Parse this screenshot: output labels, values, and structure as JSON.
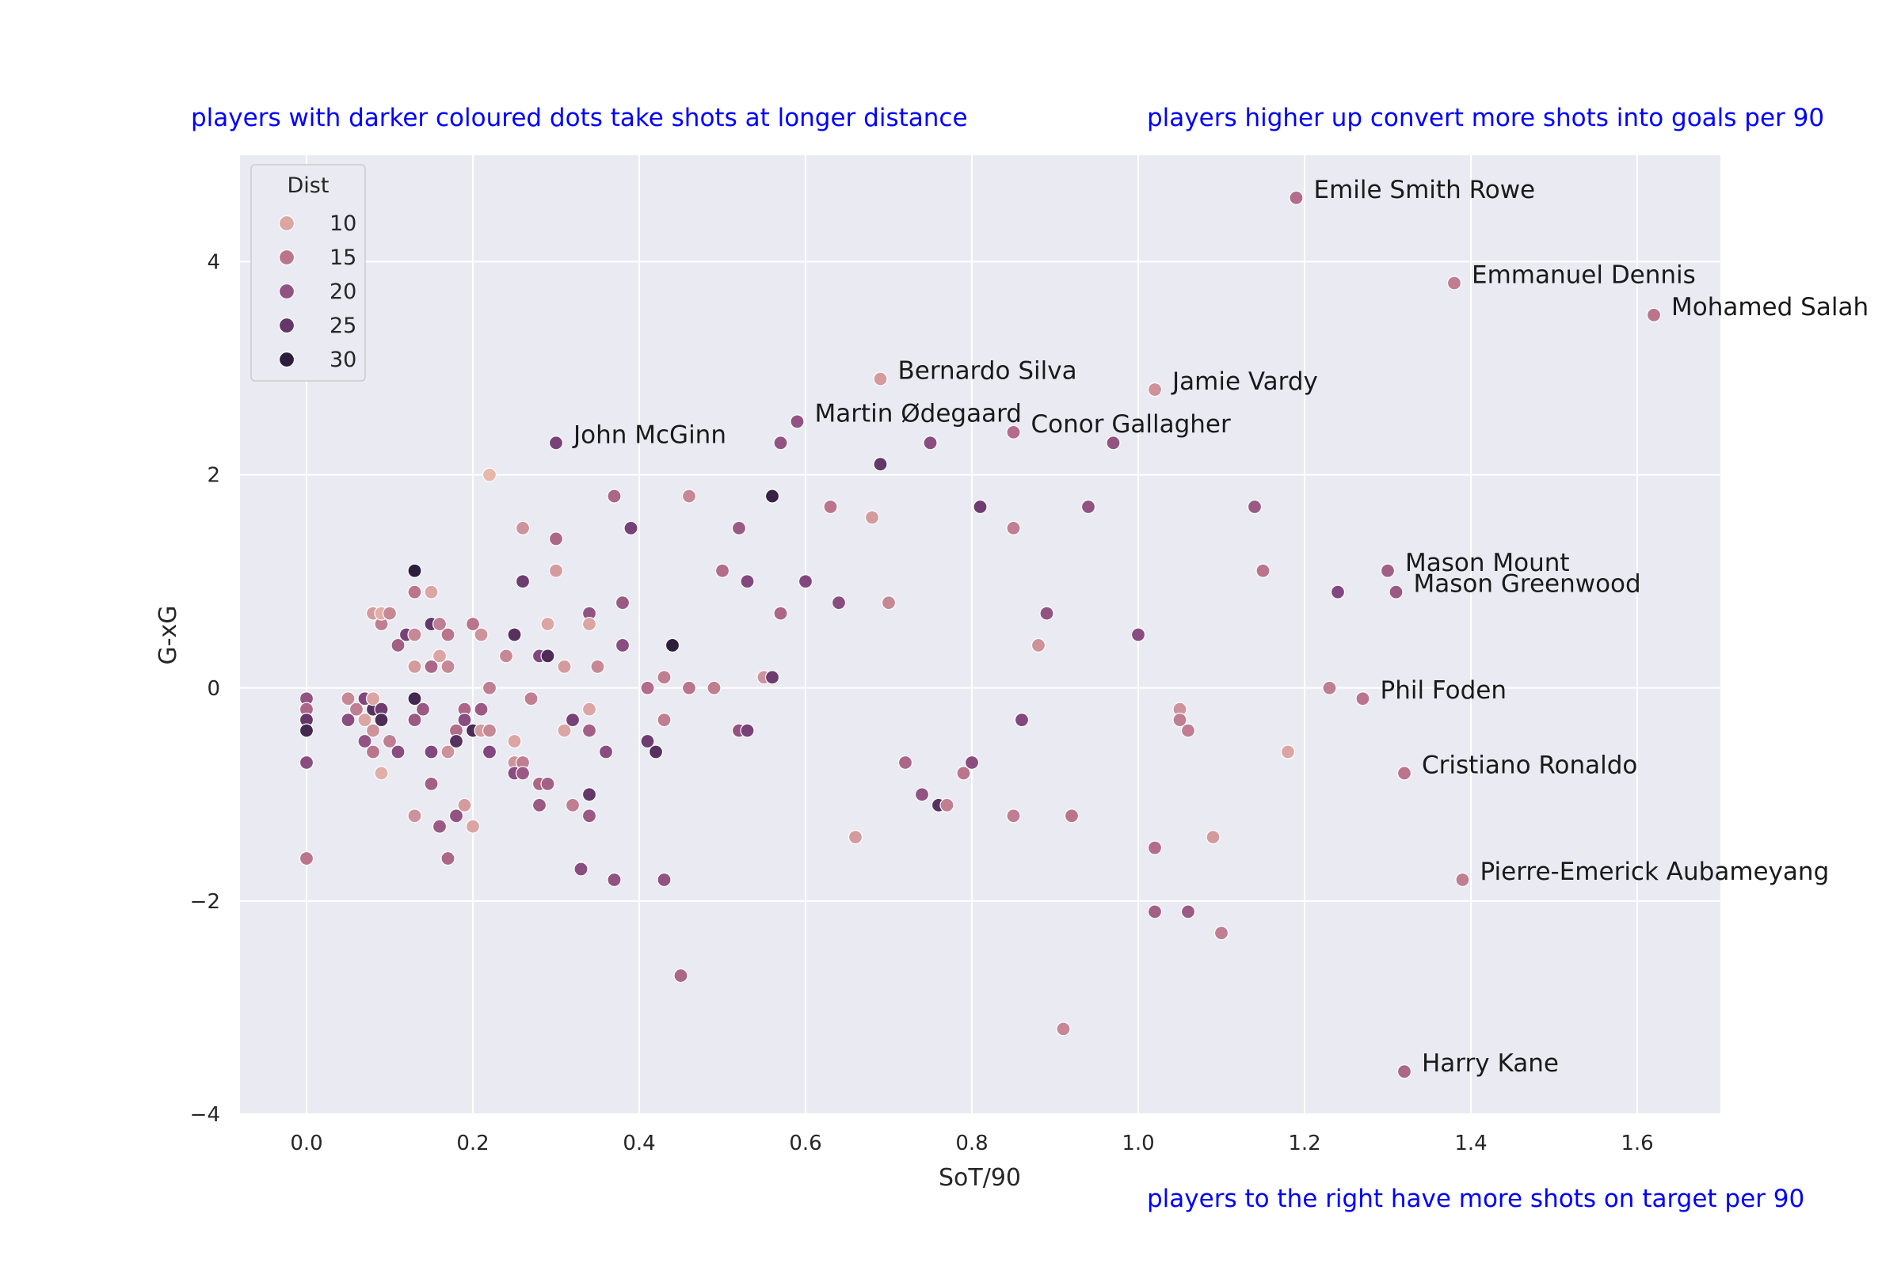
{
  "annotations": {
    "top_left": "players with darker coloured dots take shots at longer distance",
    "top_right": "players higher up convert more shots into goals per 90",
    "bottom_right": "players to the right have more shots on target per 90"
  },
  "chart_data": {
    "type": "scatter",
    "xlabel": "SoT/90",
    "ylabel": "G-xG",
    "xlim": [
      -0.08,
      1.7
    ],
    "ylim": [
      -4,
      5
    ],
    "xticks": [
      0.0,
      0.2,
      0.4,
      0.6,
      0.8,
      1.0,
      1.2,
      1.4,
      1.6
    ],
    "xtick_labels": [
      "0.0",
      "0.2",
      "0.4",
      "0.6",
      "0.8",
      "1.0",
      "1.2",
      "1.4",
      "1.6"
    ],
    "yticks": [
      -4,
      -2,
      0,
      2,
      4
    ],
    "ytick_labels": [
      "−4",
      "−2",
      "0",
      "2",
      "4"
    ],
    "grid": true,
    "hue_variable": "Dist",
    "colors": {
      "background": "#eaeaf2",
      "grid": "#ffffff",
      "annotation": "#0000ff",
      "hue_low": "#e8b8ad",
      "hue_high": "#2d1e3e"
    },
    "legend": {
      "title": "Dist",
      "placement": "upper-left",
      "entries": [
        {
          "label": "10",
          "value": 10
        },
        {
          "label": "15",
          "value": 15
        },
        {
          "label": "20",
          "value": 20
        },
        {
          "label": "25",
          "value": 25
        },
        {
          "label": "30",
          "value": 30
        }
      ]
    },
    "labeled_points": [
      {
        "name": "Emile Smith Rowe",
        "x": 1.19,
        "y": 4.6,
        "dist": 16
      },
      {
        "name": "Emmanuel Dennis",
        "x": 1.38,
        "y": 3.8,
        "dist": 14
      },
      {
        "name": "Mohamed Salah",
        "x": 1.62,
        "y": 3.5,
        "dist": 15
      },
      {
        "name": "Bernardo Silva",
        "x": 0.69,
        "y": 2.9,
        "dist": 11
      },
      {
        "name": "Jamie Vardy",
        "x": 1.02,
        "y": 2.8,
        "dist": 12
      },
      {
        "name": "Martin Ødegaard",
        "x": 0.59,
        "y": 2.5,
        "dist": 20
      },
      {
        "name": "Conor Gallagher",
        "x": 0.85,
        "y": 2.4,
        "dist": 16
      },
      {
        "name": "John McGinn",
        "x": 0.3,
        "y": 2.3,
        "dist": 23
      },
      {
        "name": "Mason Mount",
        "x": 1.3,
        "y": 1.1,
        "dist": 18
      },
      {
        "name": "Mason Greenwood",
        "x": 1.31,
        "y": 0.9,
        "dist": 19
      },
      {
        "name": "Phil Foden",
        "x": 1.27,
        "y": -0.1,
        "dist": 15
      },
      {
        "name": "Cristiano Ronaldo",
        "x": 1.32,
        "y": -0.8,
        "dist": 15
      },
      {
        "name": "Pierre-Emerick Aubameyang",
        "x": 1.39,
        "y": -1.8,
        "dist": 14
      },
      {
        "name": "Harry Kane",
        "x": 1.32,
        "y": -3.6,
        "dist": 17
      }
    ],
    "points": [
      [
        0.0,
        -0.1,
        20
      ],
      [
        0.0,
        -0.2,
        17
      ],
      [
        0.0,
        -0.3,
        25
      ],
      [
        0.0,
        -0.4,
        28
      ],
      [
        0.0,
        -0.7,
        21
      ],
      [
        0.0,
        -1.6,
        15
      ],
      [
        0.05,
        -0.1,
        13
      ],
      [
        0.05,
        -0.3,
        21
      ],
      [
        0.06,
        -0.2,
        14
      ],
      [
        0.07,
        -0.3,
        10
      ],
      [
        0.07,
        -0.1,
        22
      ],
      [
        0.07,
        -0.5,
        20
      ],
      [
        0.08,
        -0.2,
        26
      ],
      [
        0.08,
        -0.4,
        12
      ],
      [
        0.08,
        -0.6,
        15
      ],
      [
        0.08,
        0.7,
        11
      ],
      [
        0.08,
        -0.1,
        10
      ],
      [
        0.09,
        0.6,
        14
      ],
      [
        0.09,
        0.7,
        9
      ],
      [
        0.09,
        -0.2,
        24
      ],
      [
        0.09,
        -0.3,
        27
      ],
      [
        0.09,
        -0.8,
        9
      ],
      [
        0.1,
        0.7,
        13
      ],
      [
        0.1,
        -0.5,
        14
      ],
      [
        0.11,
        -0.6,
        21
      ],
      [
        0.11,
        0.4,
        18
      ],
      [
        0.12,
        0.5,
        23
      ],
      [
        0.13,
        0.9,
        15
      ],
      [
        0.13,
        0.5,
        13
      ],
      [
        0.13,
        0.2,
        11
      ],
      [
        0.13,
        1.1,
        30
      ],
      [
        0.13,
        -0.1,
        28
      ],
      [
        0.13,
        -0.3,
        19
      ],
      [
        0.13,
        -1.2,
        12
      ],
      [
        0.14,
        -0.2,
        19
      ],
      [
        0.15,
        0.9,
        10
      ],
      [
        0.15,
        0.6,
        25
      ],
      [
        0.15,
        0.2,
        17
      ],
      [
        0.15,
        -0.6,
        22
      ],
      [
        0.15,
        -0.9,
        18
      ],
      [
        0.16,
        0.6,
        14
      ],
      [
        0.16,
        0.3,
        10
      ],
      [
        0.16,
        -1.3,
        19
      ],
      [
        0.17,
        0.5,
        15
      ],
      [
        0.17,
        0.2,
        13
      ],
      [
        0.17,
        -0.6,
        12
      ],
      [
        0.17,
        -1.6,
        17
      ],
      [
        0.18,
        -0.4,
        16
      ],
      [
        0.18,
        -0.5,
        26
      ],
      [
        0.18,
        -1.2,
        20
      ],
      [
        0.19,
        -0.2,
        17
      ],
      [
        0.19,
        -0.3,
        21
      ],
      [
        0.19,
        -1.1,
        11
      ],
      [
        0.2,
        0.6,
        15
      ],
      [
        0.2,
        -0.4,
        27
      ],
      [
        0.2,
        -1.3,
        10
      ],
      [
        0.21,
        0.5,
        12
      ],
      [
        0.21,
        -0.2,
        19
      ],
      [
        0.21,
        -0.4,
        11
      ],
      [
        0.22,
        0.0,
        14
      ],
      [
        0.22,
        -0.4,
        13
      ],
      [
        0.22,
        -0.6,
        22
      ],
      [
        0.22,
        2.0,
        8
      ],
      [
        0.24,
        0.3,
        13
      ],
      [
        0.25,
        0.5,
        26
      ],
      [
        0.25,
        -0.5,
        10
      ],
      [
        0.25,
        -0.7,
        12
      ],
      [
        0.25,
        -0.8,
        21
      ],
      [
        0.26,
        1.5,
        12
      ],
      [
        0.26,
        1.0,
        24
      ],
      [
        0.26,
        -0.7,
        14
      ],
      [
        0.26,
        -0.8,
        19
      ],
      [
        0.27,
        -0.1,
        14
      ],
      [
        0.28,
        0.3,
        22
      ],
      [
        0.28,
        -0.9,
        17
      ],
      [
        0.28,
        -1.1,
        19
      ],
      [
        0.29,
        0.6,
        10
      ],
      [
        0.29,
        0.3,
        27
      ],
      [
        0.29,
        -0.9,
        18
      ],
      [
        0.3,
        1.4,
        17
      ],
      [
        0.3,
        1.1,
        11
      ],
      [
        0.31,
        0.2,
        11
      ],
      [
        0.31,
        -0.4,
        10
      ],
      [
        0.32,
        -0.3,
        23
      ],
      [
        0.32,
        -1.1,
        14
      ],
      [
        0.33,
        -1.7,
        21
      ],
      [
        0.34,
        0.7,
        20
      ],
      [
        0.34,
        0.6,
        10
      ],
      [
        0.34,
        -0.2,
        10
      ],
      [
        0.34,
        -0.4,
        18
      ],
      [
        0.34,
        -1.0,
        25
      ],
      [
        0.34,
        -1.2,
        19
      ],
      [
        0.35,
        0.2,
        13
      ],
      [
        0.36,
        -0.6,
        21
      ],
      [
        0.37,
        1.8,
        17
      ],
      [
        0.37,
        -1.8,
        20
      ],
      [
        0.38,
        0.8,
        19
      ],
      [
        0.38,
        0.4,
        21
      ],
      [
        0.39,
        1.5,
        23
      ],
      [
        0.41,
        0.0,
        16
      ],
      [
        0.41,
        -0.5,
        24
      ],
      [
        0.42,
        -0.6,
        26
      ],
      [
        0.43,
        0.1,
        14
      ],
      [
        0.43,
        -0.3,
        14
      ],
      [
        0.43,
        -1.8,
        20
      ],
      [
        0.44,
        0.4,
        30
      ],
      [
        0.45,
        -2.7,
        17
      ],
      [
        0.46,
        1.8,
        13
      ],
      [
        0.46,
        0.0,
        15
      ],
      [
        0.49,
        0.0,
        14
      ],
      [
        0.5,
        1.1,
        16
      ],
      [
        0.52,
        1.5,
        19
      ],
      [
        0.52,
        -0.4,
        20
      ],
      [
        0.53,
        1.0,
        22
      ],
      [
        0.53,
        -0.4,
        23
      ],
      [
        0.55,
        0.1,
        12
      ],
      [
        0.56,
        1.8,
        29
      ],
      [
        0.56,
        0.1,
        24
      ],
      [
        0.57,
        2.3,
        20
      ],
      [
        0.57,
        0.7,
        17
      ],
      [
        0.6,
        1.0,
        22
      ],
      [
        0.63,
        1.7,
        15
      ],
      [
        0.64,
        0.8,
        21
      ],
      [
        0.66,
        -1.4,
        11
      ],
      [
        0.68,
        1.6,
        11
      ],
      [
        0.69,
        2.1,
        25
      ],
      [
        0.7,
        0.8,
        13
      ],
      [
        0.72,
        -0.7,
        17
      ],
      [
        0.74,
        -1.0,
        20
      ],
      [
        0.75,
        2.3,
        21
      ],
      [
        0.76,
        -1.1,
        26
      ],
      [
        0.77,
        -1.1,
        14
      ],
      [
        0.79,
        -0.8,
        15
      ],
      [
        0.8,
        -0.7,
        21
      ],
      [
        0.81,
        1.7,
        24
      ],
      [
        0.85,
        1.5,
        14
      ],
      [
        0.85,
        -1.2,
        14
      ],
      [
        0.86,
        -0.3,
        22
      ],
      [
        0.88,
        0.4,
        12
      ],
      [
        0.89,
        0.7,
        20
      ],
      [
        0.91,
        -3.2,
        13
      ],
      [
        0.92,
        -1.2,
        15
      ],
      [
        0.94,
        1.7,
        20
      ],
      [
        0.97,
        2.3,
        20
      ],
      [
        1.0,
        0.5,
        21
      ],
      [
        1.02,
        -1.5,
        16
      ],
      [
        1.02,
        -2.1,
        18
      ],
      [
        1.05,
        -0.2,
        12
      ],
      [
        1.05,
        -0.3,
        14
      ],
      [
        1.06,
        -0.4,
        14
      ],
      [
        1.06,
        -2.1,
        19
      ],
      [
        1.09,
        -1.4,
        11
      ],
      [
        1.1,
        -2.3,
        14
      ],
      [
        1.14,
        1.7,
        19
      ],
      [
        1.15,
        1.1,
        15
      ],
      [
        1.18,
        -0.6,
        10
      ],
      [
        1.23,
        0.0,
        14
      ],
      [
        1.24,
        0.9,
        22
      ]
    ]
  }
}
